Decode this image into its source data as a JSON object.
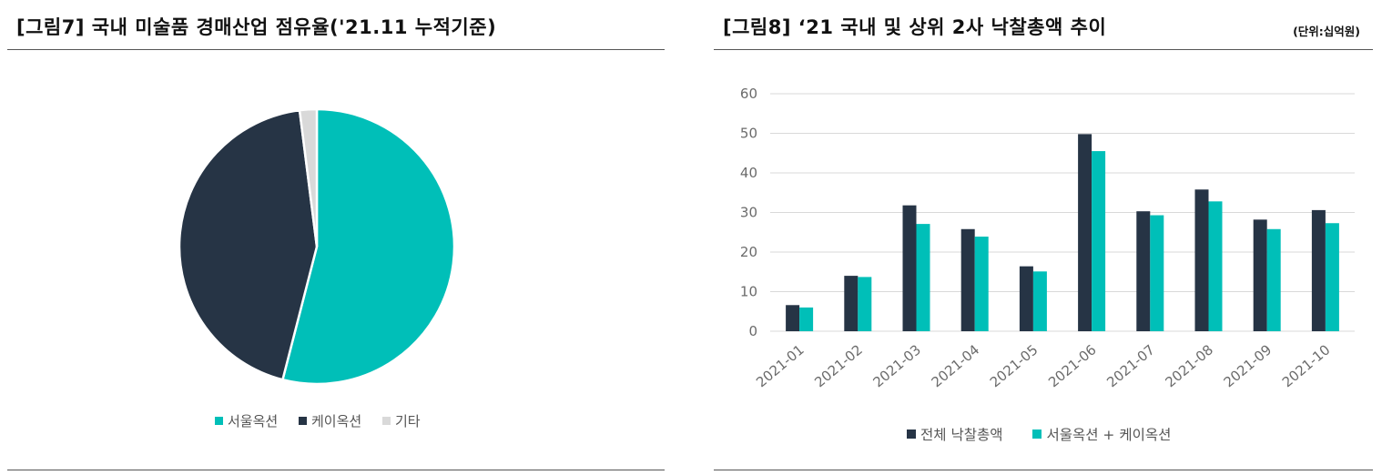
{
  "left_panel": {
    "title": "[그림7] 국내 미술품 경매산업 점유율('21.11 누적기준)"
  },
  "right_panel": {
    "title": "[그림8] ‘21 국내 및 상위 2사 낙찰총액 추이",
    "unit": "(단위:십억원)"
  },
  "colors": {
    "seoul": "#00BFB8",
    "kauction": "#263445",
    "other": "#D9D9D9",
    "grid": "#D9D9D9",
    "axis_text": "#6B6B6B"
  },
  "chart_data": [
    {
      "type": "pie",
      "title": "",
      "slices": [
        {
          "name": "서울옥션",
          "value": 54,
          "color": "#00BFB8"
        },
        {
          "name": "케이옥션",
          "value": 44,
          "color": "#263445"
        },
        {
          "name": "기타",
          "value": 2,
          "color": "#D9D9D9"
        }
      ],
      "legend_position": "bottom"
    },
    {
      "type": "bar",
      "title": "",
      "categories": [
        "2021-01",
        "2021-02",
        "2021-03",
        "2021-04",
        "2021-05",
        "2021-06",
        "2021-07",
        "2021-08",
        "2021-09",
        "2021-10"
      ],
      "series": [
        {
          "name": "전체 낙찰총액",
          "color": "#263445",
          "values": [
            6.6,
            14.0,
            31.8,
            25.8,
            16.4,
            49.8,
            30.3,
            35.8,
            28.2,
            30.6
          ]
        },
        {
          "name": "서울옥션 + 케이옥션",
          "color": "#00BFB8",
          "values": [
            6.0,
            13.7,
            27.1,
            23.9,
            15.1,
            45.5,
            29.3,
            32.8,
            25.8,
            27.3
          ]
        }
      ],
      "yticks": [
        "0",
        "10",
        "20",
        "30",
        "40",
        "50",
        "60"
      ],
      "ylim": [
        0,
        60
      ],
      "grid": true,
      "legend_position": "bottom"
    }
  ]
}
